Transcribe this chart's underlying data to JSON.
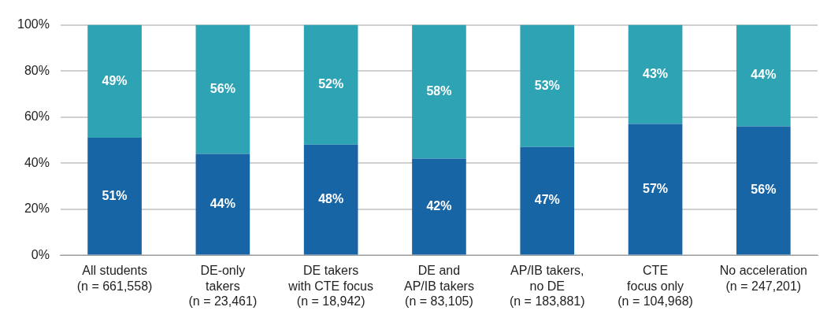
{
  "chart_data": {
    "type": "bar",
    "stacked": true,
    "categories": [
      "All students\n(n = 661,558)",
      "DE-only\ntakers\n(n = 23,461)",
      "DE takers\nwith CTE focus\n(n = 18,942)",
      "DE and\nAP/IB takers\n(n = 83,105)",
      "AP/IB takers,\nno DE\n(n = 183,881)",
      "CTE\nfocus only\n(n = 104,968)",
      "No acceleration\n(n = 247,201)"
    ],
    "series": [
      {
        "color": "#1865a5",
        "values": [
          51,
          44,
          48,
          42,
          47,
          57,
          56
        ],
        "value_labels": [
          "51%",
          "44%",
          "48%",
          "42%",
          "47%",
          "57%",
          "56%"
        ]
      },
      {
        "color": "#2ea3b4",
        "values": [
          49,
          56,
          52,
          58,
          53,
          43,
          44
        ],
        "value_labels": [
          "49%",
          "56%",
          "52%",
          "58%",
          "53%",
          "43%",
          "44%"
        ]
      }
    ],
    "ylim": [
      0,
      100
    ],
    "yticks": [
      {
        "value": 0,
        "label": "0%"
      },
      {
        "value": 20,
        "label": "20%"
      },
      {
        "value": 40,
        "label": "40%"
      },
      {
        "value": 60,
        "label": "60%"
      },
      {
        "value": 80,
        "label": "80%"
      },
      {
        "value": 100,
        "label": "100%"
      }
    ],
    "grid": "y",
    "legend": false
  }
}
